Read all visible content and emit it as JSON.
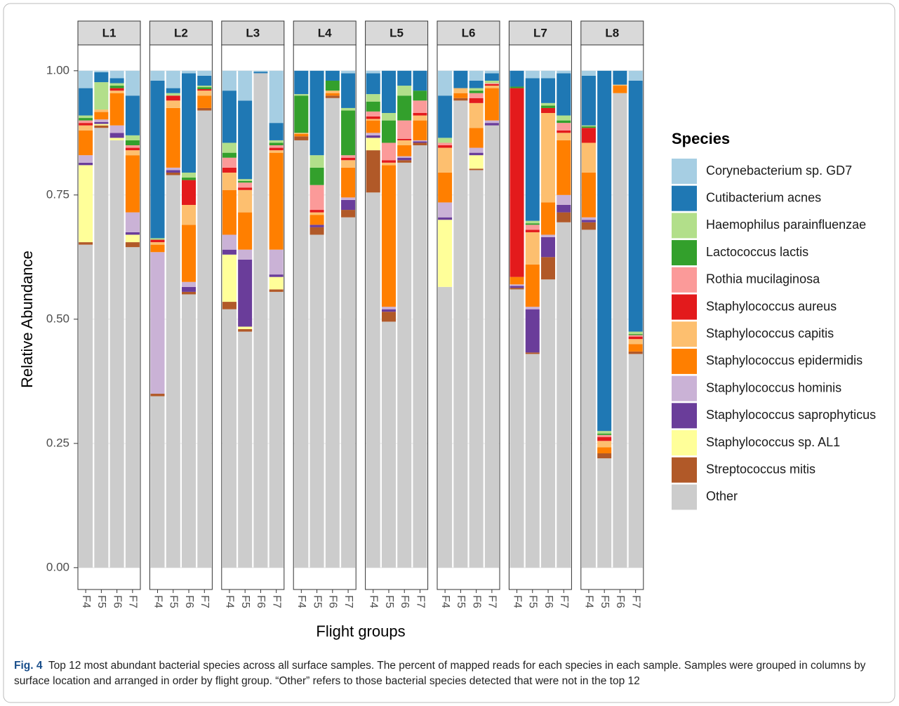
{
  "chart_data": {
    "type": "bar",
    "stacked": true,
    "panels": [
      "L1",
      "L2",
      "L3",
      "L4",
      "L5",
      "L6",
      "L7",
      "L8"
    ],
    "categories": [
      "F4",
      "F5",
      "F6",
      "F7"
    ],
    "ylabel": "Relative Abundance",
    "xlabel": "Flight groups",
    "legend_title": "Species",
    "legend": "right",
    "grid": true,
    "ylim": [
      -0.044,
      1.052
    ],
    "yticks": [
      {
        "value": 0,
        "label": "0.00"
      },
      {
        "value": 0.25,
        "label": "0.25"
      },
      {
        "value": 0.5,
        "label": "0.50"
      },
      {
        "value": 0.75,
        "label": "0.75"
      },
      {
        "value": 1,
        "label": "1.00"
      }
    ],
    "series": [
      {
        "name": "Corynebacterium sp. GD7",
        "color": "#a6cee3",
        "values": [
          [
            0.035,
            0.003,
            0.015,
            0.05
          ],
          [
            0.02,
            0.035,
            0.005,
            0.01
          ],
          [
            0.04,
            0.06,
            0.002,
            0.105
          ],
          [
            0,
            0,
            0,
            0.005
          ],
          [
            0.005,
            0,
            0,
            0
          ],
          [
            0.05,
            0,
            0.02,
            0.005
          ],
          [
            0,
            0.015,
            0.015,
            0.005
          ],
          [
            0.01,
            0,
            0,
            0.02
          ]
        ]
      },
      {
        "name": "Cutibacterium acnes",
        "color": "#1f78b4",
        "values": [
          [
            0.055,
            0.02,
            0.01,
            0.08
          ],
          [
            0.317,
            0.01,
            0.2,
            0.02
          ],
          [
            0.105,
            0.158,
            0.003,
            0.035
          ],
          [
            0.047,
            0.17,
            0.02,
            0.07
          ],
          [
            0.042,
            0.085,
            0.03,
            0.04
          ],
          [
            0.085,
            0.035,
            0.015,
            0.015
          ],
          [
            0.032,
            0.287,
            0.05,
            0.085
          ],
          [
            0.1,
            0.725,
            0.028,
            0.505
          ]
        ]
      },
      {
        "name": "Haemophilus parainfluenzae",
        "color": "#b2df8a",
        "values": [
          [
            0.005,
            0.055,
            0.005,
            0.01
          ],
          [
            0.003,
            0.005,
            0.01,
            0.003
          ],
          [
            0.02,
            0.004,
            0,
            0.005
          ],
          [
            0.003,
            0.025,
            0,
            0.005
          ],
          [
            0.015,
            0.015,
            0.02,
            0
          ],
          [
            0.01,
            0,
            0.005,
            0.005
          ],
          [
            0,
            0.005,
            0.005,
            0.01
          ],
          [
            0.002,
            0.005,
            0,
            0.005
          ]
        ]
      },
      {
        "name": "Lactococcus lactis",
        "color": "#33a02c",
        "values": [
          [
            0.005,
            0,
            0.005,
            0.01
          ],
          [
            0,
            0,
            0.005,
            0.004
          ],
          [
            0.01,
            0.003,
            0,
            0.005
          ],
          [
            0.075,
            0.035,
            0.02,
            0.09
          ],
          [
            0.02,
            0.045,
            0.05,
            0.02
          ],
          [
            0,
            0,
            0.005,
            0
          ],
          [
            0.003,
            0.003,
            0.005,
            0.005
          ],
          [
            0.003,
            0.003,
            0,
            0.002
          ]
        ]
      },
      {
        "name": "Rothia mucilaginosa",
        "color": "#fb9a99",
        "values": [
          [
            0.005,
            0,
            0,
            0.005
          ],
          [
            0,
            0,
            0,
            0
          ],
          [
            0.02,
            0.01,
            0,
            0.005
          ],
          [
            0,
            0.05,
            0,
            0.005
          ],
          [
            0.01,
            0.035,
            0.037,
            0.025
          ],
          [
            0.005,
            0,
            0.01,
            0.002
          ],
          [
            0,
            0.01,
            0,
            0.015
          ],
          [
            0,
            0.004,
            0,
            0.003
          ]
        ]
      },
      {
        "name": "Staphylococcus aureus",
        "color": "#e31a1c",
        "values": [
          [
            0.005,
            0,
            0.005,
            0.005
          ],
          [
            0.005,
            0.01,
            0.05,
            0.003
          ],
          [
            0.01,
            0.005,
            0,
            0.005
          ],
          [
            0,
            0.005,
            0,
            0.005
          ],
          [
            0.005,
            0.005,
            0.003,
            0.005
          ],
          [
            0.005,
            0,
            0.01,
            0.003
          ],
          [
            0.38,
            0.005,
            0.01,
            0.005
          ],
          [
            0.03,
            0.008,
            0,
            0.005
          ]
        ]
      },
      {
        "name": "Staphylococcus capitis",
        "color": "#fdbf6f",
        "values": [
          [
            0.01,
            0.005,
            0.005,
            0.01
          ],
          [
            0.005,
            0.015,
            0.04,
            0.01
          ],
          [
            0.035,
            0.045,
            0,
            0.005
          ],
          [
            0.002,
            0.005,
            0.005,
            0.015
          ],
          [
            0.003,
            0.005,
            0.01,
            0.01
          ],
          [
            0.05,
            0.01,
            0.05,
            0.005
          ],
          [
            0,
            0.065,
            0.18,
            0.015
          ],
          [
            0.06,
            0.013,
            0.002,
            0.01
          ]
        ]
      },
      {
        "name": "Staphylococcus epidermidis",
        "color": "#ff7f00",
        "values": [
          [
            0.05,
            0.015,
            0.065,
            0.115
          ],
          [
            0.015,
            0.12,
            0.115,
            0.025
          ],
          [
            0.09,
            0.075,
            0,
            0.195
          ],
          [
            0.005,
            0.02,
            0.005,
            0.06
          ],
          [
            0.025,
            0.285,
            0.022,
            0.04
          ],
          [
            0.06,
            0.01,
            0.04,
            0.065
          ],
          [
            0.015,
            0.085,
            0.065,
            0.11
          ],
          [
            0.09,
            0.012,
            0.015,
            0.015
          ]
        ]
      },
      {
        "name": "Staphylococcus hominis",
        "color": "#cab2d6",
        "values": [
          [
            0.015,
            0.005,
            0.015,
            0.04
          ],
          [
            0.285,
            0.005,
            0.01,
            0
          ],
          [
            0.03,
            0.02,
            0,
            0.05
          ],
          [
            0,
            0,
            0,
            0.005
          ],
          [
            0.005,
            0.005,
            0.003,
            0.002
          ],
          [
            0.03,
            0,
            0.01,
            0.005
          ],
          [
            0.003,
            0.005,
            0.005,
            0.02
          ],
          [
            0.005,
            0,
            0,
            0
          ]
        ]
      },
      {
        "name": "Staphylococcus saprophyticus",
        "color": "#6a3d9a",
        "values": [
          [
            0.005,
            0.004,
            0.01,
            0.005
          ],
          [
            0,
            0.005,
            0.01,
            0
          ],
          [
            0.01,
            0.135,
            0,
            0.005
          ],
          [
            0,
            0.005,
            0,
            0.02
          ],
          [
            0.005,
            0.005,
            0.005,
            0.003
          ],
          [
            0.005,
            0,
            0.005,
            0.005
          ],
          [
            0.004,
            0.087,
            0.04,
            0.015
          ],
          [
            0.005,
            0,
            0,
            0
          ]
        ]
      },
      {
        "name": "Staphylococcus sp. AL1",
        "color": "#ffff99",
        "values": [
          [
            0.155,
            0.003,
            0.005,
            0.015
          ],
          [
            0,
            0,
            0,
            0
          ],
          [
            0.095,
            0.005,
            0,
            0.025
          ],
          [
            0,
            0,
            0,
            0
          ],
          [
            0.025,
            0,
            0,
            0
          ],
          [
            0.135,
            0,
            0.027,
            0
          ],
          [
            0,
            0,
            0,
            0
          ],
          [
            0,
            0,
            0,
            0
          ]
        ]
      },
      {
        "name": "Streptococcus mitis",
        "color": "#b15928",
        "values": [
          [
            0.005,
            0.005,
            0,
            0.01
          ],
          [
            0.005,
            0.005,
            0.005,
            0.005
          ],
          [
            0.015,
            0.005,
            0,
            0.005
          ],
          [
            0.008,
            0.015,
            0.005,
            0.015
          ],
          [
            0.085,
            0.02,
            0.005,
            0.005
          ],
          [
            0,
            0.005,
            0.003,
            0
          ],
          [
            0.003,
            0.003,
            0.045,
            0.02
          ],
          [
            0.015,
            0.01,
            0,
            0.005
          ]
        ]
      },
      {
        "name": "Other",
        "color": "#cccccc",
        "values": [
          [
            0.65,
            0.885,
            0.86,
            0.645
          ],
          [
            0.345,
            0.79,
            0.55,
            0.92
          ],
          [
            0.52,
            0.475,
            0.995,
            0.555
          ],
          [
            0.86,
            0.67,
            0.945,
            0.705
          ],
          [
            0.755,
            0.495,
            0.815,
            0.85
          ],
          [
            0.565,
            0.94,
            0.8,
            0.89
          ],
          [
            0.56,
            0.43,
            0.58,
            0.695
          ],
          [
            0.68,
            0.22,
            0.955,
            0.43
          ]
        ]
      }
    ]
  },
  "caption": {
    "label": "Fig. 4",
    "text": "Top 12 most abundant bacterial species across all surface samples. The percent of mapped reads for each species in each sample. Samples were grouped in columns by surface location and arranged in order by flight group. “Other” refers to those bacterial species detected that were not in the top 12"
  }
}
